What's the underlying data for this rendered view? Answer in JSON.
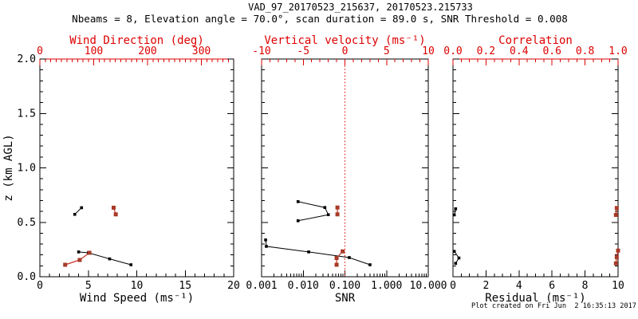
{
  "header": {
    "title": "VAD_97_20170523_215637, 20170523.215733",
    "subtitle": "Nbeams = 8, Elevation angle = 70.0°, scan duration = 89.0 s, SNR Threshold = 0.008"
  },
  "footer": {
    "created": "Plot created on Fri Jun  2 16:35:13 2017"
  },
  "colors": {
    "axis_red": "#dd0000",
    "marker_red": "#a83a28",
    "line_red": "#c53222",
    "black": "#000000",
    "background": "#ffffff"
  },
  "chart_data": [
    {
      "type": "scatter",
      "panel": "wind",
      "top_border_red": true,
      "x_bottom": {
        "label": "Wind Speed (ms⁻¹)",
        "scale": "linear",
        "min": 0,
        "max": 20,
        "majors": [
          0,
          5,
          10,
          15,
          20
        ],
        "major_labels": [
          "0",
          "5",
          "10",
          "15",
          "20"
        ],
        "minor_step": 1
      },
      "x_top": {
        "label": "Wind Direction (deg)",
        "scale": "linear",
        "min": 0,
        "max": 360,
        "majors": [
          0,
          100,
          200,
          300
        ],
        "major_labels": [
          "0",
          "100",
          "200",
          "300"
        ],
        "minor_step": 10
      },
      "y": {
        "label": "z (km AGL)",
        "min": 0,
        "max": 2,
        "majors": [
          0,
          0.5,
          1,
          1.5,
          2
        ],
        "major_labels": [
          "0.0",
          "0.5",
          "1.0",
          "1.5",
          "2.0"
        ],
        "minor_step": 0.1,
        "show_labels": true
      },
      "refline_top_axis_x": null,
      "series": [
        {
          "name": "wind-speed",
          "axis": "bottom",
          "color_role": "black",
          "segments": [
            [
              [
                3.6,
                0.573
              ],
              [
                4.3,
                0.634
              ]
            ],
            [
              [
                4.0,
                0.228
              ],
              [
                5.0,
                0.22
              ],
              [
                7.2,
                0.164
              ],
              [
                9.4,
                0.11
              ]
            ]
          ]
        },
        {
          "name": "wind-direction",
          "axis": "top",
          "color_role": "red",
          "segments": [
            [
              [
                137,
                0.634
              ],
              [
                141,
                0.573
              ]
            ],
            [
              [
                47,
                0.11
              ],
              [
                74,
                0.154
              ],
              [
                92,
                0.22
              ]
            ]
          ]
        }
      ]
    },
    {
      "type": "scatter",
      "panel": "snr",
      "top_border_red": false,
      "x_bottom": {
        "label": "SNR",
        "scale": "log",
        "min": 0.001,
        "max": 10,
        "majors": [
          0.001,
          0.01,
          0.1,
          1,
          10
        ],
        "major_labels": [
          "0.001",
          "0.010",
          "0.100",
          "1.000",
          "10.000"
        ]
      },
      "x_top": {
        "label": "Vertical velocity (ms⁻¹)",
        "scale": "linear",
        "min": -10,
        "max": 10,
        "majors": [
          -10,
          -5,
          0,
          5,
          10
        ],
        "major_labels": [
          "-10",
          "-5",
          "0",
          "5",
          "10"
        ],
        "minor_step": 1
      },
      "y": {
        "label": "",
        "min": 0,
        "max": 2,
        "majors": [
          0,
          0.5,
          1,
          1.5,
          2
        ],
        "major_labels": [
          "0.0",
          "0.5",
          "1.0",
          "1.5",
          "2.0"
        ],
        "minor_step": 0.1,
        "show_labels": false
      },
      "refline_top_axis_x": 0,
      "series": [
        {
          "name": "snr",
          "axis": "bottom",
          "color_role": "black",
          "segments": [
            [
              [
                0.0075,
                0.69
              ],
              [
                0.033,
                0.636
              ],
              [
                0.04,
                0.57
              ],
              [
                0.0075,
                0.514
              ]
            ],
            [
              [
                0.00125,
                0.338
              ],
              [
                0.0013,
                0.279
              ],
              [
                0.0135,
                0.228
              ],
              [
                0.127,
                0.176
              ],
              [
                0.4,
                0.11
              ]
            ]
          ]
        },
        {
          "name": "vertical-velocity",
          "axis": "top",
          "color_role": "red",
          "segments": [
            [
              [
                -0.9,
                0.636
              ],
              [
                -0.9,
                0.573
              ]
            ],
            [
              [
                -0.27,
                0.233
              ],
              [
                -1.0,
                0.172
              ],
              [
                -1.0,
                0.11
              ]
            ]
          ]
        }
      ]
    },
    {
      "type": "scatter",
      "panel": "residual",
      "top_border_red": true,
      "x_bottom": {
        "label": "Residual (ms⁻¹)",
        "scale": "linear",
        "min": 0,
        "max": 10,
        "majors": [
          0,
          2,
          4,
          6,
          8,
          10
        ],
        "major_labels": [
          "0",
          "2",
          "4",
          "6",
          "8",
          "10"
        ],
        "minor_step": 0.5
      },
      "x_top": {
        "label": "Correlation",
        "scale": "linear",
        "min": 0,
        "max": 1,
        "majors": [
          0,
          0.2,
          0.4,
          0.6,
          0.8,
          1.0
        ],
        "major_labels": [
          "0.0",
          "0.2",
          "0.4",
          "0.6",
          "0.8",
          "1.0"
        ],
        "minor_step": 0.05
      },
      "y": {
        "label": "",
        "min": 0,
        "max": 2,
        "majors": [
          0,
          0.5,
          1,
          1.5,
          2
        ],
        "major_labels": [
          "0.0",
          "0.5",
          "1.0",
          "1.5",
          "2.0"
        ],
        "minor_step": 0.1,
        "show_labels": false
      },
      "refline_top_axis_x": null,
      "series": [
        {
          "name": "residual",
          "axis": "bottom",
          "color_role": "black",
          "segments": [
            [
              [
                0.16,
                0.624
              ],
              [
                0.08,
                0.568
              ]
            ],
            [
              [
                0.08,
                0.233
              ],
              [
                0.36,
                0.172
              ],
              [
                0.16,
                0.123
              ]
            ]
          ]
        },
        {
          "name": "correlation",
          "axis": "top",
          "color_role": "red",
          "segments": [
            [
              [
                0.992,
                0.631
              ],
              [
                0.987,
                0.568
              ]
            ],
            [
              [
                1.0,
                0.24
              ],
              [
                0.992,
                0.179
              ],
              [
                0.987,
                0.123
              ]
            ]
          ]
        }
      ]
    }
  ]
}
